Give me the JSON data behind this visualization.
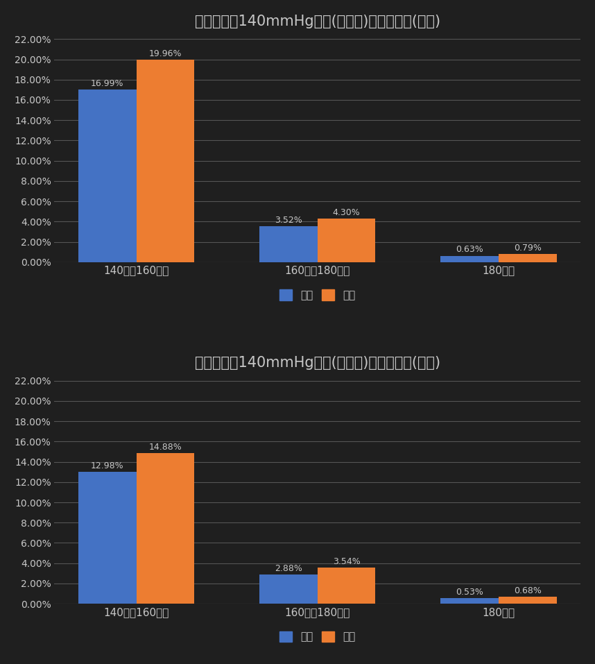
{
  "title_male": "収縮期血圧140mmHg以上(高血圧)の方の割合(男性)",
  "title_female": "収縮期血圧140mmHg以上(高血圧)の方の割合(女性)",
  "categories": [
    "140以上160未満",
    "160以上180未満",
    "180以上"
  ],
  "male_zenkoku": [
    16.99,
    3.52,
    0.63
  ],
  "male_ehime": [
    19.96,
    4.3,
    0.79
  ],
  "female_zenkoku": [
    12.98,
    2.88,
    0.53
  ],
  "female_ehime": [
    14.88,
    3.54,
    0.68
  ],
  "color_zenkoku": "#4472C4",
  "color_ehime": "#ED7D31",
  "legend_zenkoku": "全国",
  "legend_ehime": "愛媛",
  "ylim_max": 22,
  "ytick_step": 2,
  "background_color": "#1F1F1F",
  "text_color": "#C8C8C8",
  "grid_color": "#555555",
  "title_fontsize": 15,
  "label_fontsize": 11,
  "tick_fontsize": 10,
  "bar_width": 0.32,
  "annotation_fontsize": 9,
  "legend_fontsize": 11
}
